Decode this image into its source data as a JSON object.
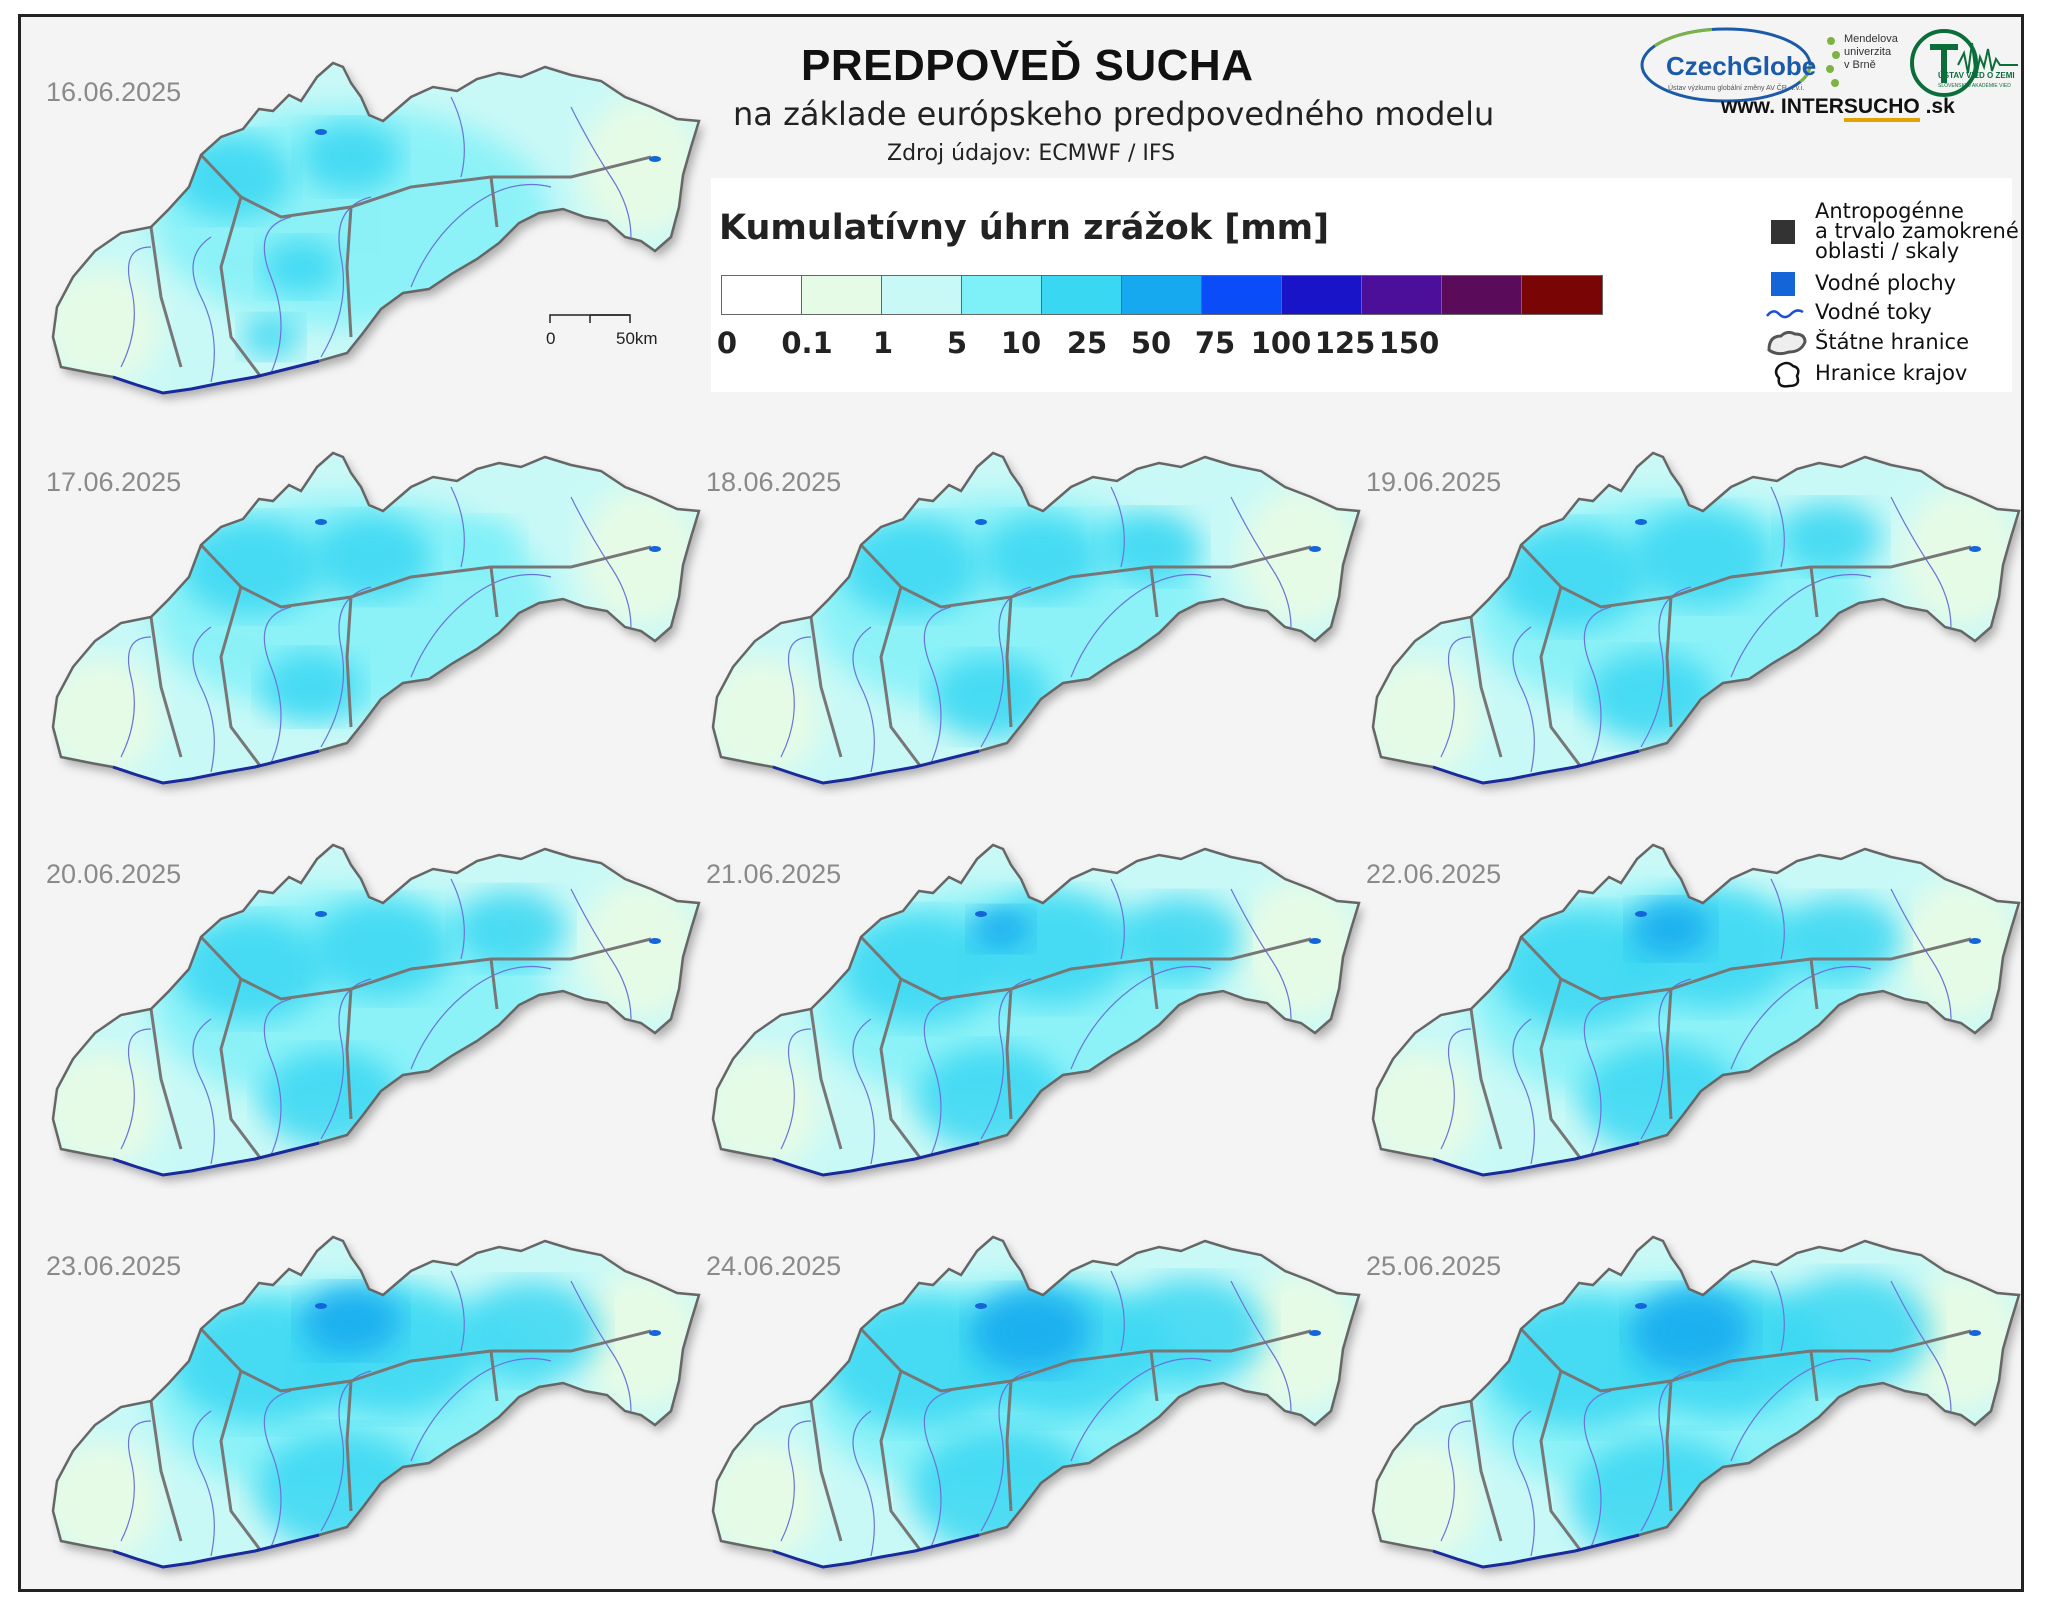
{
  "header": {
    "title": "PREDPOVEĎ SUCHA",
    "subtitle": "na základe európskeho predpovedného modelu",
    "source": "Zdroj údajov: ECMWF / IFS"
  },
  "logos": {
    "czechglobe": "CzechGlobe",
    "czechglobe_sub": "Ústav výzkumu globální změny AV ČR, v.v.i.",
    "mendel": [
      "Mendelova",
      "univerzita",
      "v Brně"
    ],
    "uvz": "ÚSTAV VIED O ZEMI",
    "uvz_sub": "SLOVENSKEJ AKADÉMIE VIED",
    "website_prefix": "www. INTER",
    "website_highlight": "SUCHO",
    "website_suffix": " .sk"
  },
  "legend": {
    "title": "Kumulatívny úhrn zrážok [mm]",
    "colors": [
      "#ffffff",
      "#e6fbe6",
      "#c9f9f7",
      "#7ef0f8",
      "#3ad7f2",
      "#17a9ef",
      "#0a4cf7",
      "#1a14c8",
      "#4b0f9a",
      "#5a0b5a",
      "#7a0505"
    ],
    "ticks": [
      "0",
      "0.1",
      "1",
      "5",
      "10",
      "25",
      "50",
      "75",
      "100",
      "125",
      "150"
    ],
    "keys": {
      "anthro_line1": "Antropogénne",
      "anthro_line2": "a trvalo zamokrené",
      "anthro_line3": "oblasti / skaly",
      "water_bodies": "Vodné plochy",
      "rivers": "Vodné toky",
      "state_border": "Štátne hranice",
      "region_border": "Hranice krajov"
    },
    "key_colors": {
      "anthro": "#333333",
      "water_bodies": "#1466d8",
      "rivers": "#1a4fd6"
    }
  },
  "scalebar": {
    "start": "0",
    "end": "50km"
  },
  "maps": [
    {
      "date": "16.06.2025"
    },
    {
      "date": "17.06.2025"
    },
    {
      "date": "18.06.2025"
    },
    {
      "date": "19.06.2025"
    },
    {
      "date": "20.06.2025"
    },
    {
      "date": "21.06.2025"
    },
    {
      "date": "22.06.2025"
    },
    {
      "date": "23.06.2025"
    },
    {
      "date": "24.06.2025"
    },
    {
      "date": "25.06.2025"
    }
  ]
}
